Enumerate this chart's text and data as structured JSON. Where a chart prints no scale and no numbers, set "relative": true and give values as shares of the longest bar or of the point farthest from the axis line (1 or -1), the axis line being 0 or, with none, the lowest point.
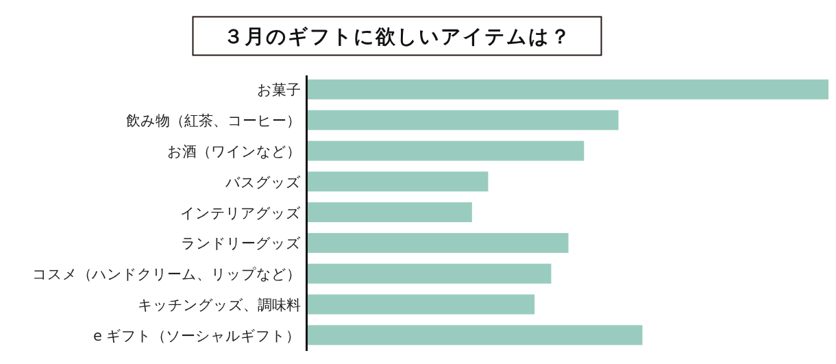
{
  "chart_data": {
    "type": "bar",
    "orientation": "horizontal",
    "relative": true,
    "title": "３月のギフトに欲しいアイテムは？",
    "categories": [
      "お菓子",
      "飲み物（紅茶、コーヒー）",
      "お酒（ワインなど）",
      "バスグッズ",
      "インテリアグッズ",
      "ランドリーグッズ",
      "コスメ（ハンドクリーム、リップなど）",
      "キッチングッズ、調味料",
      "e ギフト（ソーシャルギフト）"
    ],
    "values": [
      1,
      0.597,
      0.531,
      0.347,
      0.316,
      0.501,
      0.468,
      0.436,
      0.643
    ],
    "color": "#99ccbf"
  }
}
